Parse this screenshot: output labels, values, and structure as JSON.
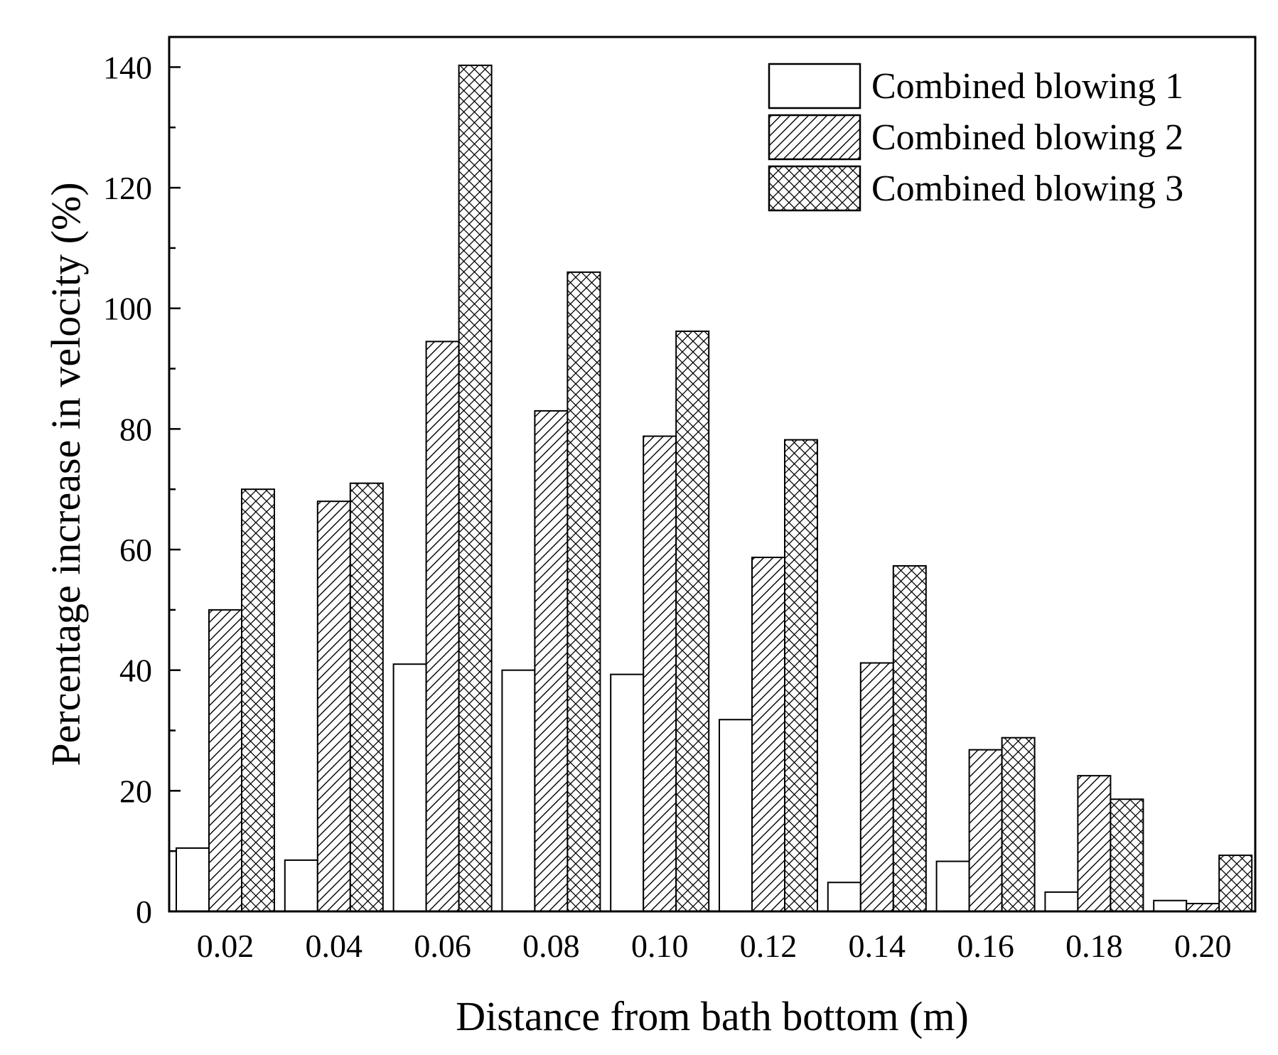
{
  "chart_data": {
    "type": "bar",
    "title": "",
    "xlabel": "Distance from bath bottom (m)",
    "ylabel": "Percentage increase in velocity (%)",
    "ylim": [
      0,
      145
    ],
    "yticks": [
      0,
      20,
      40,
      60,
      80,
      100,
      120,
      140
    ],
    "ytick_labels": [
      "0",
      "20",
      "40",
      "60",
      "80",
      "100",
      "120",
      "140"
    ],
    "categories": [
      "0.02",
      "0.04",
      "0.06",
      "0.08",
      "0.10",
      "0.12",
      "0.14",
      "0.16",
      "0.18",
      "0.20"
    ],
    "series": [
      {
        "name": "Combined blowing 1",
        "pattern": "solid-white",
        "values": [
          10.5,
          8.5,
          41,
          40,
          39.3,
          31.8,
          4.8,
          8.3,
          3.2,
          1.8
        ]
      },
      {
        "name": "Combined blowing 2",
        "pattern": "diagonal-hatch",
        "values": [
          50,
          68,
          94.5,
          83,
          78.8,
          58.7,
          41.2,
          26.8,
          22.5,
          1.3
        ]
      },
      {
        "name": "Combined blowing 3",
        "pattern": "cross-hatch",
        "values": [
          70,
          71,
          140.3,
          106,
          96.2,
          78.2,
          57.3,
          28.8,
          18.6,
          9.3
        ]
      }
    ],
    "grid": false,
    "legend_position": "top-right",
    "colors": {
      "stroke": "#000000",
      "fill": "#ffffff",
      "background": "#ffffff"
    }
  }
}
